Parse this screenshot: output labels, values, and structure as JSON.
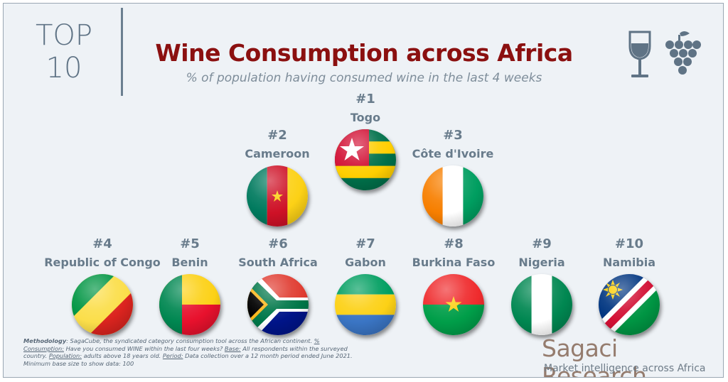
{
  "header": {
    "top_line1": "TOP",
    "top_line2": "10",
    "title": "Wine Consumption across Africa",
    "subtitle": "% of population having consumed wine in the last 4 weeks"
  },
  "icons": [
    "wine-glass-icon",
    "grapes-icon"
  ],
  "ranking": [
    {
      "rank": "#1",
      "country": "Togo",
      "flag": "togo-flag-icon"
    },
    {
      "rank": "#2",
      "country": "Cameroon",
      "flag": "cameroon-flag-icon"
    },
    {
      "rank": "#3",
      "country": "Côte d'Ivoire",
      "flag": "cote-divoire-flag-icon"
    },
    {
      "rank": "#4",
      "country": "Republic of Congo",
      "flag": "congo-flag-icon"
    },
    {
      "rank": "#5",
      "country": "Benin",
      "flag": "benin-flag-icon"
    },
    {
      "rank": "#6",
      "country": "South Africa",
      "flag": "south-africa-flag-icon"
    },
    {
      "rank": "#7",
      "country": "Gabon",
      "flag": "gabon-flag-icon"
    },
    {
      "rank": "#8",
      "country": "Burkina Faso",
      "flag": "burkina-faso-flag-icon"
    },
    {
      "rank": "#9",
      "country": "Nigeria",
      "flag": "nigeria-flag-icon"
    },
    {
      "rank": "#10",
      "country": "Namibia",
      "flag": "namibia-flag-icon"
    }
  ],
  "methodology": {
    "label1": "Methodology",
    "text1": ": SagaCube, the syndicated category consumption tool across the African continent.",
    "label2": "% Consumption:",
    "text2": " Have you consumed WINE within the last four weeks? ",
    "label3": "Base:",
    "text3": " All respondents within the surveyed country. ",
    "label4": "Population:",
    "text4": " adults above 18 years old. ",
    "label5": "Period:",
    "text5": " Data collection over a 12 month period ended June 2021. Minimum base size to show data: 100"
  },
  "brand": {
    "name": "Sagaci Research",
    "tagline": "Market intelligence across Africa"
  },
  "colors": {
    "title": "#8b1010",
    "text": "#687b8b",
    "brand": "#957c6e",
    "background": "#eef2f6"
  }
}
